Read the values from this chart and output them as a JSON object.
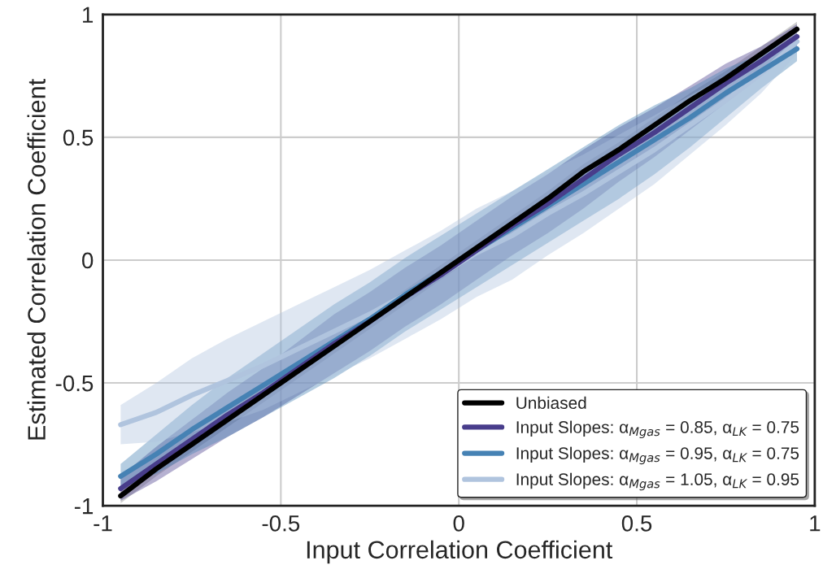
{
  "chart_data": {
    "type": "line",
    "xlabel": "Input Correlation Coefficient",
    "ylabel": "Estimated Correlation Coefficient",
    "x": [
      -0.95,
      -0.85,
      -0.75,
      -0.65,
      -0.55,
      -0.45,
      -0.35,
      -0.25,
      -0.15,
      -0.05,
      0.05,
      0.15,
      0.25,
      0.35,
      0.45,
      0.55,
      0.65,
      0.75,
      0.85,
      0.95
    ],
    "series": [
      {
        "name": "Unbiased",
        "color": "#000000",
        "values": [
          -0.96,
          -0.85,
          -0.75,
          -0.65,
          -0.55,
          -0.45,
          -0.35,
          -0.25,
          -0.15,
          -0.05,
          0.05,
          0.15,
          0.25,
          0.36,
          0.45,
          0.55,
          0.65,
          0.74,
          0.84,
          0.94
        ],
        "lower": [
          -0.99,
          -0.88,
          -0.78,
          -0.68,
          -0.58,
          -0.48,
          -0.38,
          -0.28,
          -0.18,
          -0.08,
          0.02,
          0.12,
          0.22,
          0.33,
          0.42,
          0.52,
          0.62,
          0.71,
          0.81,
          0.91
        ],
        "upper": [
          -0.93,
          -0.82,
          -0.72,
          -0.62,
          -0.52,
          -0.42,
          -0.32,
          -0.22,
          -0.12,
          -0.02,
          0.08,
          0.18,
          0.28,
          0.39,
          0.48,
          0.58,
          0.68,
          0.77,
          0.87,
          0.97
        ]
      },
      {
        "name": "Input Slopes: α$_{Mgas}$ = 0.85, α$_{LK}$ = 0.75",
        "color": "#483d8b",
        "values": [
          -0.93,
          -0.83,
          -0.73,
          -0.63,
          -0.54,
          -0.44,
          -0.34,
          -0.25,
          -0.15,
          -0.06,
          0.04,
          0.14,
          0.23,
          0.33,
          0.43,
          0.52,
          0.62,
          0.72,
          0.81,
          0.91
        ],
        "lower": [
          -0.98,
          -0.9,
          -0.81,
          -0.72,
          -0.64,
          -0.55,
          -0.46,
          -0.37,
          -0.27,
          -0.18,
          -0.08,
          0.02,
          0.11,
          0.21,
          0.32,
          0.42,
          0.53,
          0.64,
          0.75,
          0.86
        ],
        "upper": [
          -0.88,
          -0.76,
          -0.65,
          -0.54,
          -0.44,
          -0.33,
          -0.22,
          -0.13,
          -0.03,
          0.06,
          0.16,
          0.26,
          0.35,
          0.45,
          0.54,
          0.62,
          0.71,
          0.8,
          0.87,
          0.96
        ]
      },
      {
        "name": "Input Slopes: α$_{Mgas}$ = 0.95, α$_{LK}$ = 0.75",
        "color": "#4682b4",
        "values": [
          -0.88,
          -0.79,
          -0.69,
          -0.6,
          -0.51,
          -0.42,
          -0.33,
          -0.24,
          -0.14,
          -0.05,
          0.04,
          0.13,
          0.22,
          0.31,
          0.4,
          0.49,
          0.58,
          0.68,
          0.77,
          0.86
        ],
        "lower": [
          -0.93,
          -0.87,
          -0.79,
          -0.72,
          -0.64,
          -0.56,
          -0.48,
          -0.39,
          -0.29,
          -0.2,
          -0.11,
          -0.02,
          0.07,
          0.16,
          0.25,
          0.35,
          0.46,
          0.58,
          0.7,
          0.81
        ],
        "upper": [
          -0.83,
          -0.71,
          -0.59,
          -0.48,
          -0.38,
          -0.28,
          -0.18,
          -0.09,
          0.01,
          0.1,
          0.19,
          0.28,
          0.37,
          0.46,
          0.55,
          0.63,
          0.7,
          0.78,
          0.84,
          0.91
        ]
      },
      {
        "name": "Input Slopes: α$_{Mgas}$ = 1.05, α$_{LK}$ = 0.95",
        "color": "#b0c4de",
        "values": [
          -0.67,
          -0.62,
          -0.55,
          -0.49,
          -0.43,
          -0.36,
          -0.29,
          -0.22,
          -0.14,
          -0.06,
          0.03,
          0.1,
          0.19,
          0.27,
          0.36,
          0.45,
          0.55,
          0.65,
          0.76,
          0.89
        ],
        "lower": [
          -0.75,
          -0.74,
          -0.7,
          -0.66,
          -0.61,
          -0.54,
          -0.47,
          -0.4,
          -0.32,
          -0.24,
          -0.15,
          -0.08,
          0.02,
          0.11,
          0.21,
          0.31,
          0.43,
          0.55,
          0.68,
          0.84
        ],
        "upper": [
          -0.59,
          -0.5,
          -0.4,
          -0.32,
          -0.25,
          -0.18,
          -0.11,
          -0.04,
          0.04,
          0.12,
          0.21,
          0.28,
          0.36,
          0.43,
          0.51,
          0.59,
          0.67,
          0.75,
          0.84,
          0.94
        ]
      }
    ],
    "xlim": [
      -1,
      1
    ],
    "ylim": [
      -1,
      1
    ],
    "xticks": [
      -1,
      -0.5,
      0,
      0.5,
      1
    ],
    "yticks": [
      -1,
      -0.5,
      0,
      0.5,
      1
    ],
    "grid": true,
    "legend": "bottom right",
    "line_style": "solid",
    "marker": "none"
  }
}
